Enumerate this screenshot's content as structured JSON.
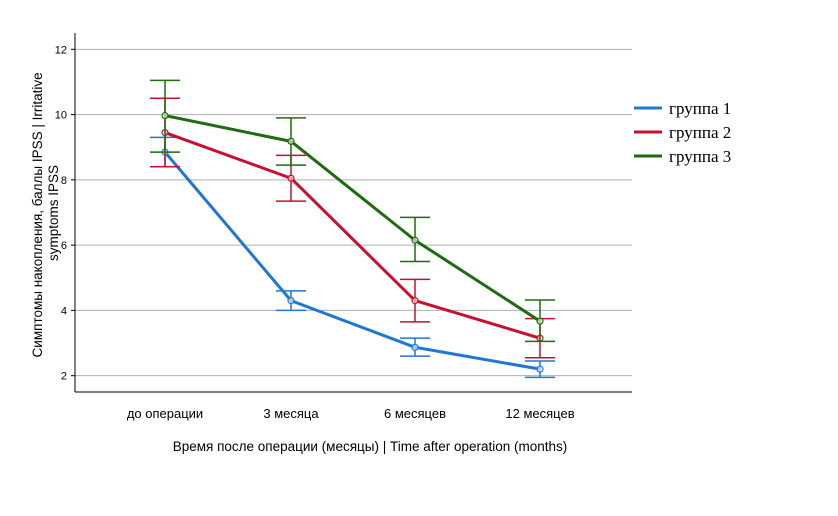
{
  "chart_data": {
    "type": "line",
    "title": "",
    "xlabel": "Время после операции (месяцы) | Time after operation (months)",
    "ylabel": [
      "Симптомы накопления, баллы IPSS | Irritative",
      "symptoms IPSS"
    ],
    "categories": [
      "до операции",
      "3 месяца",
      "6 месяцев",
      "12 месяцев"
    ],
    "ylim": [
      1.5,
      12.5
    ],
    "yticks": [
      2,
      4,
      6,
      8,
      10,
      12
    ],
    "grid": true,
    "legend_position": "right",
    "error_bars": true,
    "series": [
      {
        "name": "группа 1",
        "color": "#1f77d4",
        "values": [
          8.85,
          4.3,
          2.87,
          2.2
        ],
        "lower": [
          8.4,
          4.0,
          2.6,
          1.95
        ],
        "upper": [
          9.3,
          4.6,
          3.15,
          2.45
        ]
      },
      {
        "name": "группа 2",
        "color": "#c8102e",
        "values": [
          9.45,
          8.05,
          4.3,
          3.15
        ],
        "lower": [
          8.4,
          7.35,
          3.65,
          2.55
        ],
        "upper": [
          10.5,
          8.75,
          4.95,
          3.75
        ]
      },
      {
        "name": "группа 3",
        "color": "#1f6b0f",
        "values": [
          9.97,
          9.18,
          6.15,
          3.67
        ],
        "lower": [
          8.85,
          8.45,
          5.5,
          3.05
        ],
        "upper": [
          11.05,
          9.9,
          6.85,
          4.32
        ]
      }
    ]
  }
}
